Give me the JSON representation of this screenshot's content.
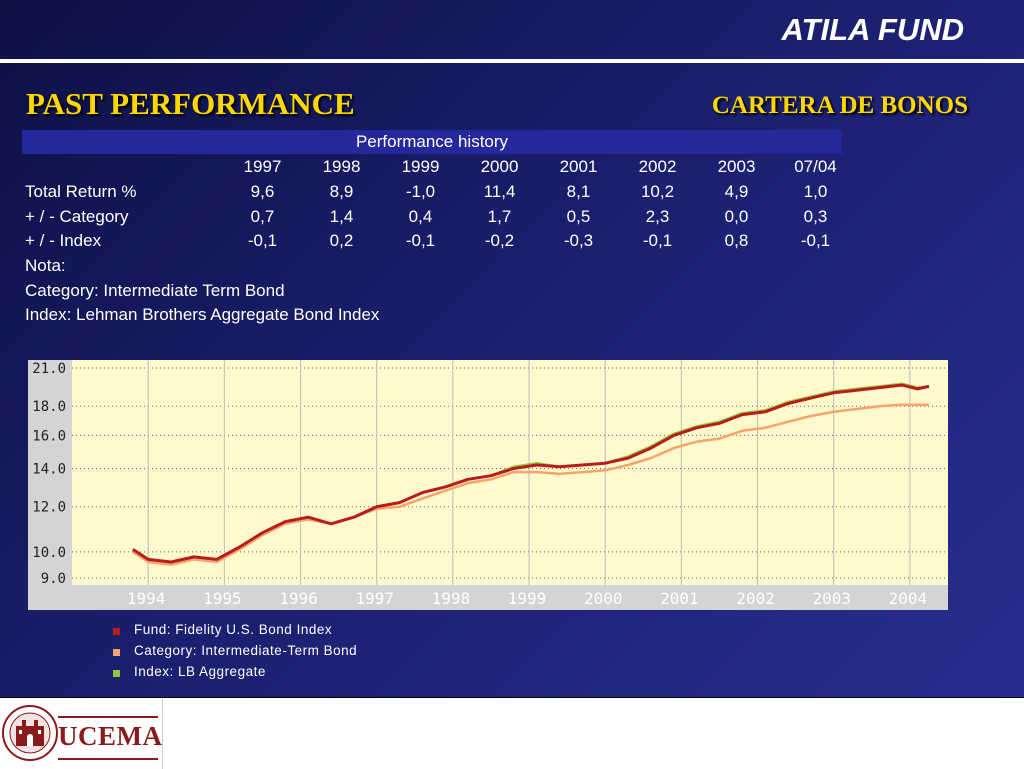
{
  "header": {
    "title": "ATILA FUND"
  },
  "section": {
    "left_title": "PAST PERFORMANCE",
    "right_title": "CARTERA DE BONOS"
  },
  "performance": {
    "table_title": "Performance history",
    "columns": [
      "1997",
      "1998",
      "1999",
      "2000",
      "2001",
      "2002",
      "2003",
      "07/04"
    ],
    "rows": [
      {
        "label": "Total Return %",
        "values": [
          "9,6",
          "8,9",
          "-1,0",
          "11,4",
          "8,1",
          "10,2",
          "4,9",
          "1,0"
        ]
      },
      {
        "label": "+ / - Category",
        "values": [
          "0,7",
          "1,4",
          "0,4",
          "1,7",
          "0,5",
          "2,3",
          "0,0",
          "0,3"
        ]
      },
      {
        "label": "+ / - Index",
        "values": [
          "-0,1",
          "0,2",
          "-0,1",
          "-0,2",
          "-0,3",
          "-0,1",
          "0,8",
          "-0,1"
        ]
      }
    ],
    "notes": [
      "Nota:",
      "Category: Intermediate Term Bond",
      "Index: Lehman Brothers Aggregate Bond Index"
    ]
  },
  "chart_data": {
    "type": "line",
    "x": [
      1993.8,
      1994.0,
      1994.3,
      1994.6,
      1994.9,
      1995.2,
      1995.5,
      1995.8,
      1996.1,
      1996.4,
      1996.7,
      1997.0,
      1997.3,
      1997.6,
      1997.9,
      1998.2,
      1998.5,
      1998.8,
      1999.1,
      1999.4,
      1999.7,
      2000.0,
      2000.3,
      2000.6,
      2000.9,
      2001.2,
      2001.5,
      2001.8,
      2002.1,
      2002.4,
      2002.7,
      2003.0,
      2003.3,
      2003.6,
      2003.9,
      2004.1,
      2004.25
    ],
    "series": [
      {
        "name": "Fund: Fidelity U.S. Bond Index",
        "values": [
          10.1,
          9.7,
          9.6,
          9.8,
          9.7,
          10.2,
          10.8,
          11.3,
          11.5,
          11.2,
          11.5,
          12.0,
          12.2,
          12.7,
          13.0,
          13.4,
          13.6,
          14.0,
          14.2,
          14.1,
          14.2,
          14.3,
          14.6,
          15.2,
          16.0,
          16.5,
          16.8,
          17.4,
          17.6,
          18.2,
          18.6,
          19.0,
          19.2,
          19.4,
          19.6,
          19.3,
          19.5
        ]
      },
      {
        "name": "Category: Intermediate-Term Bond",
        "values": [
          10.0,
          9.6,
          9.5,
          9.7,
          9.6,
          10.1,
          10.7,
          11.2,
          11.4,
          11.2,
          11.5,
          11.9,
          12.0,
          12.4,
          12.8,
          13.2,
          13.4,
          13.8,
          13.8,
          13.7,
          13.8,
          13.9,
          14.2,
          14.6,
          15.2,
          15.6,
          15.8,
          16.3,
          16.5,
          16.9,
          17.3,
          17.6,
          17.8,
          18.0,
          18.1,
          18.1,
          18.1
        ]
      },
      {
        "name": "Index: LB Aggregate",
        "values": [
          10.1,
          9.7,
          9.6,
          9.8,
          9.7,
          10.2,
          10.8,
          11.3,
          11.5,
          11.2,
          11.5,
          12.0,
          12.2,
          12.7,
          13.0,
          13.4,
          13.6,
          14.1,
          14.3,
          14.1,
          14.2,
          14.3,
          14.7,
          15.3,
          16.1,
          16.6,
          16.9,
          17.5,
          17.7,
          18.3,
          18.7,
          19.1,
          19.3,
          19.5,
          19.7,
          19.4,
          19.5
        ]
      }
    ],
    "xlim": [
      1993.0,
      2004.5
    ],
    "y_ticks": [
      "21.0",
      "18.0",
      "16.0",
      "14.0",
      "12.0",
      "10.0",
      "9.0"
    ],
    "x_ticks": [
      "1994",
      "1995",
      "1996",
      "1997",
      "1998",
      "1999",
      "2000",
      "2001",
      "2002",
      "2003",
      "2004"
    ],
    "log_scale": true,
    "grid": true,
    "colors": {
      "fund": "#b81c1c",
      "category": "#f4a46c",
      "index": "#8fc83c",
      "plot_bg": "#fffacd",
      "axis_bg": "#d4d4d4",
      "axis_text": "#ffffff",
      "grid": "#666666"
    }
  },
  "footer": {
    "logo_text": "UCEMA"
  }
}
